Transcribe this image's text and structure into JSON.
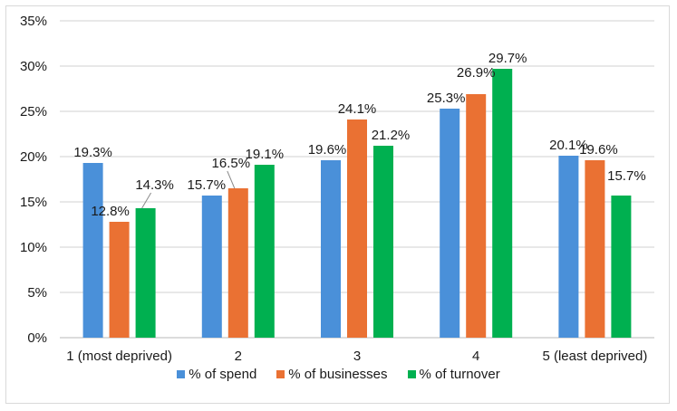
{
  "chart_data": {
    "type": "bar",
    "title": "",
    "xlabel": "",
    "ylabel": "",
    "ylim": [
      0,
      35
    ],
    "yticks": [
      "0%",
      "5%",
      "10%",
      "15%",
      "20%",
      "25%",
      "30%",
      "35%"
    ],
    "ytick_values": [
      0,
      5,
      10,
      15,
      20,
      25,
      30,
      35
    ],
    "grid": true,
    "legend_position": "bottom",
    "categories": [
      "1 (most deprived)",
      "2",
      "3",
      "4",
      "5 (least deprived)"
    ],
    "series": [
      {
        "name": "% of spend",
        "color": "#4a90d9",
        "values": [
          19.3,
          15.7,
          19.6,
          25.3,
          20.1
        ],
        "labels": [
          "19.3%",
          "15.7%",
          "19.6%",
          "25.3%",
          "20.1%"
        ]
      },
      {
        "name": "% of businesses",
        "color": "#ea7133",
        "values": [
          12.8,
          16.5,
          24.1,
          26.9,
          19.6
        ],
        "labels": [
          "12.8%",
          "16.5%",
          "24.1%",
          "26.9%",
          "19.6%"
        ]
      },
      {
        "name": "% of turnover",
        "color": "#00b050",
        "values": [
          14.3,
          19.1,
          21.2,
          29.7,
          15.7
        ],
        "labels": [
          "14.3%",
          "19.1%",
          "21.2%",
          "29.7%",
          "15.7%"
        ]
      }
    ]
  }
}
